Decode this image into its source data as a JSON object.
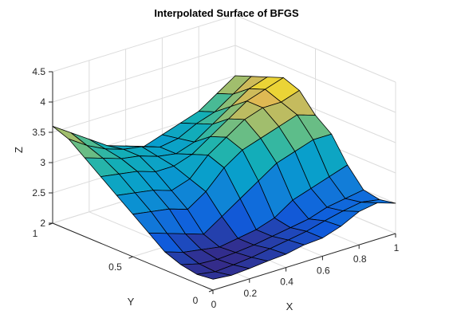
{
  "chart_data": {
    "type": "surface",
    "title": "Interpolated Surface of BFGS",
    "xlabel": "X",
    "ylabel": "Y",
    "zlabel": "Z",
    "xlim": [
      0,
      1
    ],
    "ylim": [
      0,
      1
    ],
    "zlim": [
      2,
      4.5
    ],
    "x_ticks": [
      "0",
      "0.2",
      "0.4",
      "0.6",
      "0.8",
      "1"
    ],
    "y_ticks": [
      "0",
      "0.5",
      "1"
    ],
    "z_ticks": [
      "2",
      "2.5",
      "3",
      "3.5",
      "4",
      "4.5"
    ],
    "x_tick_values": [
      0,
      0.2,
      0.4,
      0.6,
      0.8,
      1
    ],
    "y_tick_values": [
      0,
      0.5,
      1
    ],
    "z_tick_values": [
      2,
      2.5,
      3,
      3.5,
      4,
      4.5
    ],
    "grid": true,
    "colormap": "parula",
    "x": [
      0,
      0.1,
      0.2,
      0.3,
      0.4,
      0.5,
      0.6,
      0.7,
      0.8,
      0.9,
      1.0
    ],
    "y": [
      0,
      0.1,
      0.2,
      0.3,
      0.4,
      0.5,
      0.6,
      0.7,
      0.8,
      0.9,
      1.0
    ],
    "z": [
      [
        2.18,
        2.15,
        2.17,
        2.2,
        2.22,
        2.28,
        2.3,
        2.4,
        2.55,
        2.6,
        2.5
      ],
      [
        2.15,
        2.1,
        2.12,
        2.15,
        2.2,
        2.25,
        2.3,
        2.38,
        2.45,
        2.5,
        2.45
      ],
      [
        2.2,
        2.12,
        2.1,
        2.12,
        2.15,
        2.2,
        2.25,
        2.3,
        2.4,
        2.45,
        2.5
      ],
      [
        2.3,
        2.2,
        2.15,
        2.1,
        2.15,
        2.2,
        2.3,
        2.5,
        2.6,
        2.7,
        2.8
      ],
      [
        2.5,
        2.4,
        2.3,
        2.2,
        2.4,
        2.6,
        2.8,
        3.0,
        3.1,
        3.2,
        3.2
      ],
      [
        2.7,
        2.65,
        2.6,
        2.5,
        2.7,
        3.0,
        3.2,
        3.3,
        3.4,
        3.5,
        3.4
      ],
      [
        2.9,
        2.85,
        2.8,
        2.7,
        2.8,
        3.1,
        3.3,
        3.5,
        3.6,
        3.6,
        3.7
      ],
      [
        3.1,
        3.05,
        3.0,
        2.9,
        2.9,
        3.0,
        3.2,
        3.4,
        3.6,
        3.7,
        3.8
      ],
      [
        3.3,
        3.2,
        3.1,
        3.05,
        2.95,
        2.9,
        3.0,
        3.2,
        3.4,
        3.6,
        3.7
      ],
      [
        3.5,
        3.3,
        3.15,
        3.05,
        3.0,
        2.9,
        2.95,
        3.1,
        3.2,
        3.4,
        3.6
      ],
      [
        3.6,
        3.4,
        3.2,
        3.0,
        2.9,
        2.8,
        2.9,
        3.0,
        3.1,
        3.3,
        3.5
      ]
    ]
  }
}
